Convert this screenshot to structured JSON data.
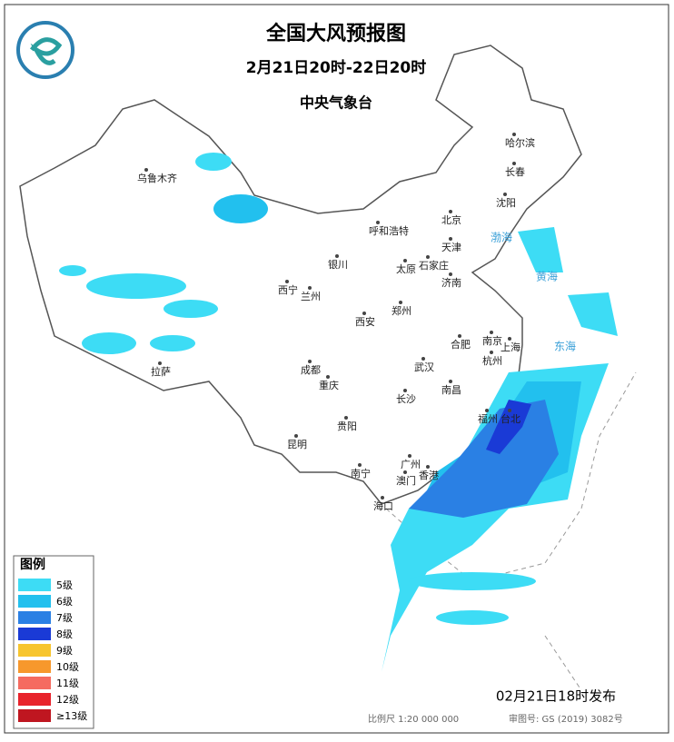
{
  "header": {
    "title": "全国大风预报图",
    "subtitle": "2月21日20时-22日20时",
    "issuer": "中央气象台"
  },
  "cities": [
    "乌鲁木齐",
    "哈尔滨",
    "长春",
    "沈阳",
    "北京",
    "天津",
    "呼和浩特",
    "银川",
    "太原",
    "石家庄",
    "济南",
    "西宁",
    "兰州",
    "郑州",
    "西安",
    "合肥",
    "南京",
    "上海",
    "拉萨",
    "成都",
    "武汉",
    "杭州",
    "重庆",
    "长沙",
    "南昌",
    "福州",
    "台北",
    "贵阳",
    "昆明",
    "南宁",
    "广州",
    "香港",
    "澳门",
    "海口"
  ],
  "seas": [
    "渤海",
    "黄海",
    "东海"
  ],
  "legend": {
    "title": "图例",
    "items": [
      {
        "label": "5级",
        "color": "#3ddcf5"
      },
      {
        "label": "6级",
        "color": "#22c0ee"
      },
      {
        "label": "7级",
        "color": "#2a80e4"
      },
      {
        "label": "8级",
        "color": "#1a3ad6"
      },
      {
        "label": "9级",
        "color": "#f7c52e"
      },
      {
        "label": "10级",
        "color": "#f7982c"
      },
      {
        "label": "11级",
        "color": "#f56b60"
      },
      {
        "label": "12级",
        "color": "#e8232b"
      },
      {
        "label": "≥13级",
        "color": "#bf1620"
      }
    ]
  },
  "footer": {
    "published": "02月21日18时发布",
    "scale": "比例尺 1:20 000 000",
    "map_number": "审图号: GS (2019) 3082号"
  }
}
